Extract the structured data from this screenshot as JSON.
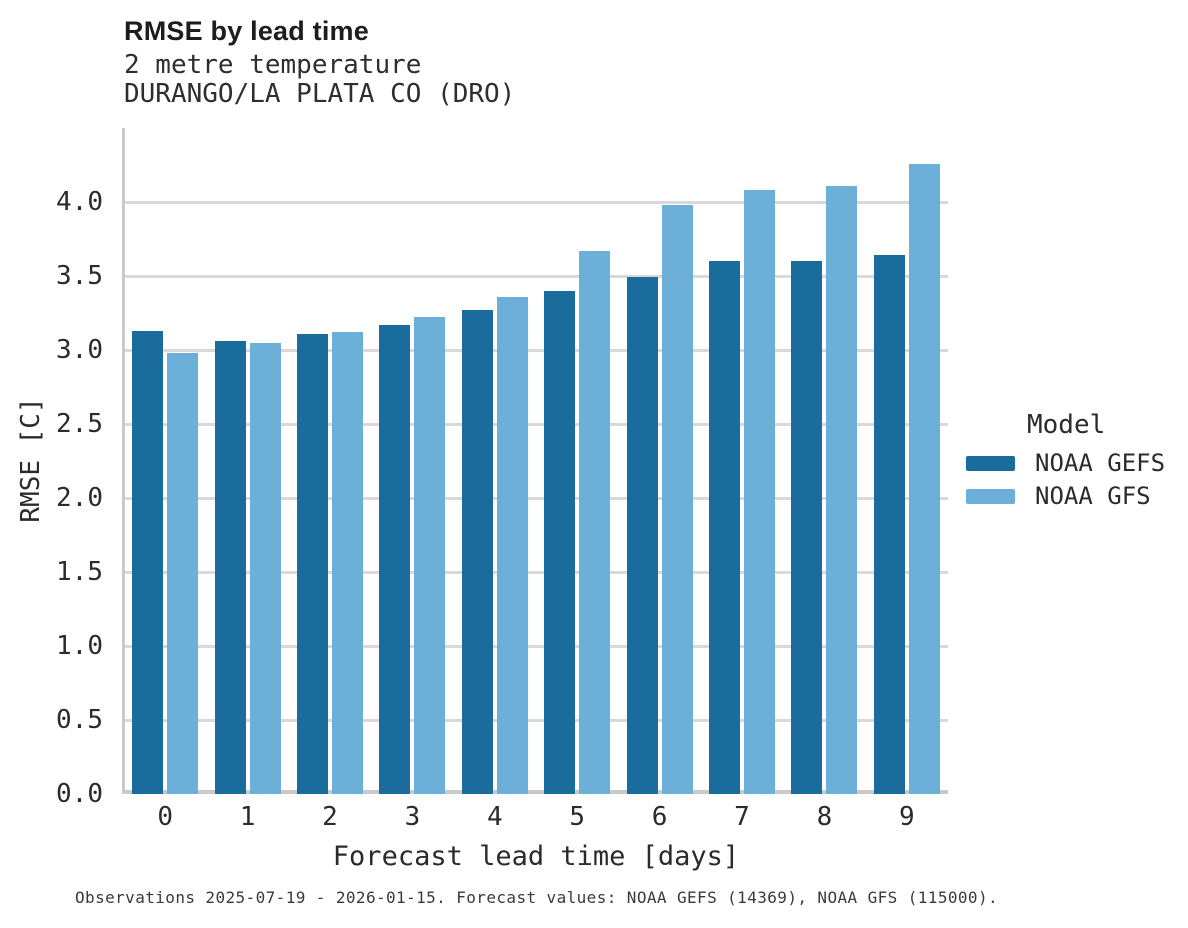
{
  "chart_data": {
    "type": "bar",
    "title": "RMSE by lead time",
    "subtitle1": "2 metre temperature",
    "subtitle2": "DURANGO/LA PLATA CO (DRO)",
    "xlabel": "Forecast lead time [days]",
    "ylabel": "RMSE [C]",
    "categories": [
      "0",
      "1",
      "2",
      "3",
      "4",
      "5",
      "6",
      "7",
      "8",
      "9"
    ],
    "series": [
      {
        "name": "NOAA GEFS",
        "color": "#1a6c9c",
        "values": [
          3.13,
          3.06,
          3.11,
          3.17,
          3.27,
          3.4,
          3.49,
          3.6,
          3.6,
          3.64
        ]
      },
      {
        "name": "NOAA GFS",
        "color": "#6cafd8",
        "values": [
          2.98,
          3.05,
          3.12,
          3.22,
          3.36,
          3.67,
          3.98,
          4.08,
          4.11,
          4.26
        ]
      }
    ],
    "ylim": [
      0,
      4.5
    ],
    "yticks": [
      0.0,
      0.5,
      1.0,
      1.5,
      2.0,
      2.5,
      3.0,
      3.5,
      4.0
    ],
    "ytick_format_decimals": 1,
    "grid": true,
    "legend_title": "Model",
    "legend_position": "right",
    "caption": "Observations 2025-07-19 - 2026-01-15. Forecast values: NOAA GEFS (14369), NOAA GFS (115000)."
  },
  "colors": {
    "background": "#ffffff",
    "grid": "#d9d9db",
    "axis": "#c9c9cc",
    "title_text": "#1d1d1d",
    "text": "#2b2b2b",
    "caption_text": "#3a3a3a"
  }
}
